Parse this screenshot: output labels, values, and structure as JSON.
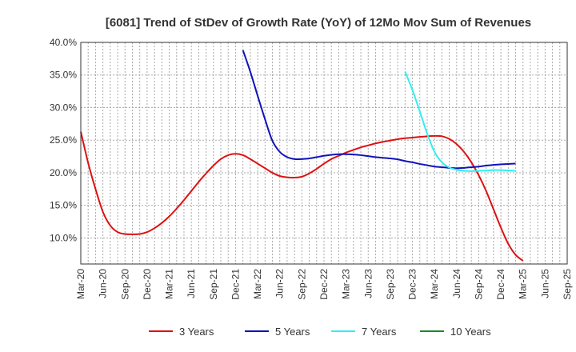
{
  "chart_data": {
    "type": "line",
    "title": "[6081]  Trend of StDev of Growth Rate (YoY) of 12Mo Mov Sum of Revenues",
    "xlabel": "",
    "ylabel": "",
    "ylim": [
      6.0,
      40.0
    ],
    "y_ticks": [
      {
        "value": 10,
        "label": "10.0%"
      },
      {
        "value": 15,
        "label": "15.0%"
      },
      {
        "value": 20,
        "label": "20.0%"
      },
      {
        "value": 25,
        "label": "25.0%"
      },
      {
        "value": 30,
        "label": "30.0%"
      },
      {
        "value": 35,
        "label": "35.0%"
      },
      {
        "value": 40,
        "label": "40.0%"
      }
    ],
    "x_start": "Mar-20",
    "x_months": 66,
    "x_ticks": [
      {
        "index": 0,
        "label": "Mar-20"
      },
      {
        "index": 3,
        "label": "Jun-20"
      },
      {
        "index": 6,
        "label": "Sep-20"
      },
      {
        "index": 9,
        "label": "Dec-20"
      },
      {
        "index": 12,
        "label": "Mar-21"
      },
      {
        "index": 15,
        "label": "Jun-21"
      },
      {
        "index": 18,
        "label": "Sep-21"
      },
      {
        "index": 21,
        "label": "Dec-21"
      },
      {
        "index": 24,
        "label": "Mar-22"
      },
      {
        "index": 27,
        "label": "Jun-22"
      },
      {
        "index": 30,
        "label": "Sep-22"
      },
      {
        "index": 33,
        "label": "Dec-22"
      },
      {
        "index": 36,
        "label": "Mar-23"
      },
      {
        "index": 39,
        "label": "Jun-23"
      },
      {
        "index": 42,
        "label": "Sep-23"
      },
      {
        "index": 45,
        "label": "Dec-23"
      },
      {
        "index": 48,
        "label": "Mar-24"
      },
      {
        "index": 51,
        "label": "Jun-24"
      },
      {
        "index": 54,
        "label": "Sep-24"
      },
      {
        "index": 57,
        "label": "Dec-24"
      },
      {
        "index": 60,
        "label": "Mar-25"
      },
      {
        "index": 63,
        "label": "Jun-25"
      },
      {
        "index": 66,
        "label": "Sep-25"
      }
    ],
    "series": [
      {
        "name": "3 Years",
        "color": "#dd1111",
        "points": [
          [
            0,
            26.3
          ],
          [
            1,
            21.5
          ],
          [
            2,
            17.5
          ],
          [
            3,
            14.0
          ],
          [
            4,
            11.9
          ],
          [
            5,
            10.9
          ],
          [
            6,
            10.6
          ],
          [
            7,
            10.55
          ],
          [
            8,
            10.6
          ],
          [
            9,
            10.9
          ],
          [
            10,
            11.5
          ],
          [
            11,
            12.3
          ],
          [
            12,
            13.3
          ],
          [
            13,
            14.5
          ],
          [
            14,
            15.8
          ],
          [
            15,
            17.2
          ],
          [
            16,
            18.6
          ],
          [
            17,
            19.9
          ],
          [
            18,
            21.1
          ],
          [
            19,
            22.1
          ],
          [
            20,
            22.7
          ],
          [
            21,
            22.9
          ],
          [
            22,
            22.7
          ],
          [
            23,
            22.1
          ],
          [
            24,
            21.4
          ],
          [
            25,
            20.7
          ],
          [
            26,
            20.0
          ],
          [
            27,
            19.5
          ],
          [
            28,
            19.3
          ],
          [
            29,
            19.25
          ],
          [
            30,
            19.4
          ],
          [
            31,
            19.9
          ],
          [
            32,
            20.6
          ],
          [
            33,
            21.4
          ],
          [
            34,
            22.1
          ],
          [
            35,
            22.6
          ],
          [
            36,
            23.1
          ],
          [
            37,
            23.5
          ],
          [
            38,
            23.9
          ],
          [
            39,
            24.2
          ],
          [
            40,
            24.5
          ],
          [
            41,
            24.75
          ],
          [
            42,
            24.95
          ],
          [
            43,
            25.15
          ],
          [
            44,
            25.3
          ],
          [
            45,
            25.4
          ],
          [
            46,
            25.5
          ],
          [
            47,
            25.6
          ],
          [
            48,
            25.65
          ],
          [
            49,
            25.6
          ],
          [
            50,
            25.2
          ],
          [
            51,
            24.4
          ],
          [
            52,
            23.2
          ],
          [
            53,
            21.6
          ],
          [
            54,
            19.6
          ],
          [
            55,
            17.2
          ],
          [
            56,
            14.4
          ],
          [
            57,
            11.6
          ],
          [
            58,
            9.1
          ],
          [
            59,
            7.4
          ],
          [
            60,
            6.5
          ]
        ]
      },
      {
        "name": "5 Years",
        "color": "#1111bb",
        "points": [
          [
            22,
            38.8
          ],
          [
            23,
            35.5
          ],
          [
            24,
            31.8
          ],
          [
            25,
            28.2
          ],
          [
            26,
            24.9
          ],
          [
            27,
            23.2
          ],
          [
            28,
            22.4
          ],
          [
            29,
            22.1
          ],
          [
            30,
            22.1
          ],
          [
            31,
            22.2
          ],
          [
            32,
            22.4
          ],
          [
            33,
            22.6
          ],
          [
            34,
            22.75
          ],
          [
            35,
            22.85
          ],
          [
            36,
            22.85
          ],
          [
            37,
            22.8
          ],
          [
            38,
            22.7
          ],
          [
            39,
            22.55
          ],
          [
            40,
            22.4
          ],
          [
            41,
            22.3
          ],
          [
            42,
            22.2
          ],
          [
            43,
            22.05
          ],
          [
            44,
            21.8
          ],
          [
            45,
            21.6
          ],
          [
            46,
            21.35
          ],
          [
            47,
            21.15
          ],
          [
            48,
            20.95
          ],
          [
            49,
            20.85
          ],
          [
            50,
            20.75
          ],
          [
            51,
            20.7
          ],
          [
            52,
            20.75
          ],
          [
            53,
            20.85
          ],
          [
            54,
            20.95
          ],
          [
            55,
            21.1
          ],
          [
            56,
            21.2
          ],
          [
            57,
            21.3
          ],
          [
            58,
            21.35
          ],
          [
            59,
            21.4
          ]
        ]
      },
      {
        "name": "7 Years",
        "color": "#33eeee",
        "points": [
          [
            44,
            35.5
          ],
          [
            45,
            32.7
          ],
          [
            46,
            29.4
          ],
          [
            47,
            26.0
          ],
          [
            48,
            23.2
          ],
          [
            49,
            21.6
          ],
          [
            50,
            20.8
          ],
          [
            51,
            20.45
          ],
          [
            52,
            20.3
          ],
          [
            53,
            20.25
          ],
          [
            54,
            20.3
          ],
          [
            55,
            20.35
          ],
          [
            56,
            20.4
          ],
          [
            57,
            20.4
          ],
          [
            58,
            20.35
          ],
          [
            59,
            20.3
          ]
        ]
      },
      {
        "name": "10 Years",
        "color": "#228822",
        "points": []
      }
    ]
  }
}
